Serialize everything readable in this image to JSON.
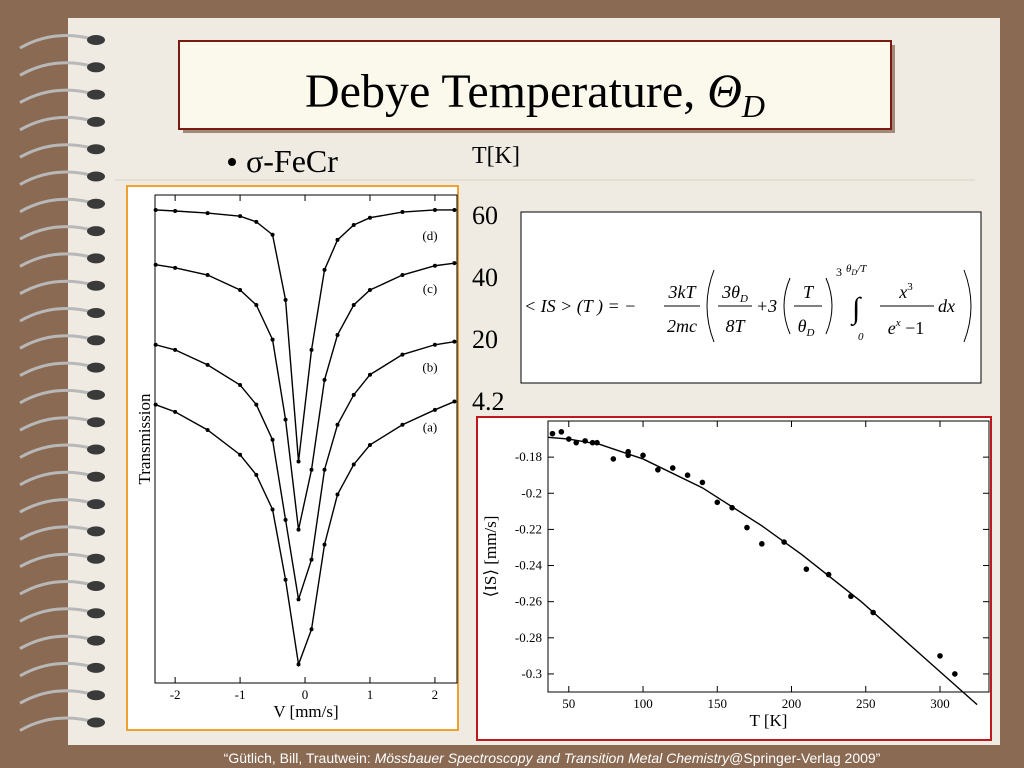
{
  "title": {
    "text": "Debye Temperature, ",
    "symbol": "Θ",
    "subscript": "D"
  },
  "bullet": "σ-FeCr",
  "temperatures": {
    "header": "T[K]",
    "values": [
      60,
      40,
      20,
      4.2
    ]
  },
  "formula": {
    "lhs": "< IS > (T ) = −",
    "frac1": {
      "num": "3kT",
      "den": "2mc"
    },
    "frac2": {
      "num": "3θ",
      "num_sub": "D",
      "den": "8T"
    },
    "plus": "+3",
    "frac3": {
      "num": "T",
      "den": "θ",
      "den_sub": "D"
    },
    "power": "3",
    "integral": "∫",
    "upper": {
      "sym": "θ",
      "sub": "D",
      "rest": "/T"
    },
    "lower": "0",
    "frac4": {
      "num": "x",
      "num_sup": "3",
      "den": "e",
      "den_sup": "x",
      "den_rest": " −1"
    },
    "dx": "dx"
  },
  "footer": {
    "pre": "“Gütlich, Bill, Trautwein: ",
    "book": "Mössbauer Spectroscopy and Transition Metal Chemistry",
    "post": "@Springer-Verlag 2009”"
  },
  "chart_data": [
    {
      "type": "line",
      "x_label": "V [mm/s]",
      "y_label": "Transmission",
      "xlim": [
        -2.31,
        2.34
      ],
      "ylim": [
        0.055,
        1
      ],
      "xticks": [
        -2,
        -1,
        0,
        1,
        2
      ],
      "x": [
        -2.3,
        -2,
        -1.5,
        -1,
        -0.75,
        -0.5,
        -0.3,
        -0.1,
        0.1,
        0.3,
        0.5,
        0.75,
        1,
        1.5,
        2,
        2.3
      ],
      "series": [
        {
          "name": "(d)",
          "color": "#000000",
          "values": [
            0.971,
            0.969,
            0.965,
            0.959,
            0.948,
            0.923,
            0.797,
            0.484,
            0.7,
            0.855,
            0.913,
            0.942,
            0.956,
            0.967,
            0.971,
            0.971
          ]
        },
        {
          "name": "(c)",
          "color": "#000000",
          "values": [
            0.865,
            0.859,
            0.845,
            0.816,
            0.787,
            0.72,
            0.565,
            0.352,
            0.468,
            0.642,
            0.729,
            0.787,
            0.816,
            0.845,
            0.863,
            0.868
          ]
        },
        {
          "name": "(b)",
          "color": "#000000",
          "values": [
            0.71,
            0.7,
            0.671,
            0.632,
            0.594,
            0.526,
            0.371,
            0.217,
            0.294,
            0.468,
            0.555,
            0.613,
            0.652,
            0.691,
            0.71,
            0.716
          ]
        },
        {
          "name": "(a)",
          "color": "#000000",
          "values": [
            0.594,
            0.58,
            0.545,
            0.497,
            0.458,
            0.391,
            0.255,
            0.091,
            0.159,
            0.323,
            0.42,
            0.478,
            0.516,
            0.555,
            0.584,
            0.6
          ]
        }
      ]
    },
    {
      "type": "scatter",
      "x_label": "T [K]",
      "y_label": "⟨IS⟩ [mm/s]",
      "xlim": [
        36,
        333
      ],
      "ylim": [
        -0.31,
        -0.16
      ],
      "xticks": [
        50,
        100,
        150,
        200,
        250,
        300
      ],
      "yticks": [
        -0.18,
        -0.2,
        -0.22,
        -0.24,
        -0.26,
        -0.28,
        -0.3
      ],
      "series": [
        {
          "type": "scatter",
          "color": "#000000",
          "x": [
            39,
            45,
            50,
            55,
            61,
            66,
            69,
            80,
            90,
            90,
            100,
            110,
            120,
            130,
            140,
            150,
            160,
            170,
            180,
            195,
            210,
            225,
            240,
            255,
            300,
            310
          ],
          "values": [
            -0.167,
            -0.166,
            -0.17,
            -0.172,
            -0.171,
            -0.172,
            -0.172,
            -0.181,
            -0.177,
            -0.179,
            -0.179,
            -0.187,
            -0.186,
            -0.19,
            -0.194,
            -0.205,
            -0.208,
            -0.219,
            -0.228,
            -0.227,
            -0.242,
            -0.245,
            -0.257,
            -0.266,
            -0.29,
            -0.3
          ]
        },
        {
          "type": "line",
          "color": "#000000",
          "x": [
            36,
            50,
            71,
            100,
            140,
            180,
            207,
            247,
            288,
            325
          ],
          "values": [
            -0.169,
            -0.17,
            -0.173,
            -0.181,
            -0.197,
            -0.218,
            -0.234,
            -0.26,
            -0.29,
            -0.317
          ]
        }
      ]
    }
  ]
}
